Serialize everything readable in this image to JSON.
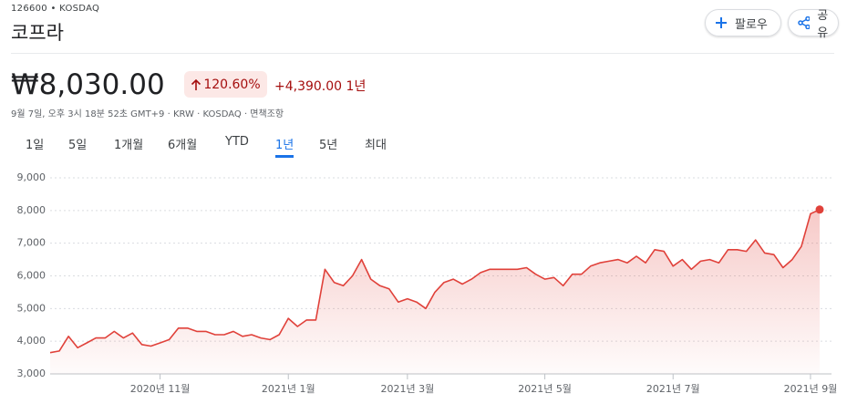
{
  "header": {
    "ticker": "126600 • KOSDAQ",
    "name": "코프라",
    "follow": "팔로우",
    "share": "공유"
  },
  "quote": {
    "price": "₩8,030.00",
    "change_pct": "120.60%",
    "change": "+4,390.00",
    "period": "1년",
    "timestamp": "9월 7일, 오후 3시 18분 52초 GMT+9 · KRW · KOSDAQ · 면책조항"
  },
  "tabs": {
    "items": [
      "1일",
      "5일",
      "1개월",
      "6개월",
      "YTD",
      "1년",
      "5년",
      "최대"
    ],
    "selected": 5
  },
  "chart_data": {
    "type": "line",
    "color": "#e0413a",
    "grid": true,
    "categories": [
      null,
      null,
      null,
      null,
      null,
      null,
      null,
      null,
      null,
      null,
      null,
      null,
      "2020년 11월",
      null,
      null,
      null,
      null,
      null,
      null,
      null,
      null,
      null,
      null,
      null,
      null,
      null,
      "2021년 1월",
      null,
      null,
      null,
      null,
      null,
      null,
      null,
      null,
      null,
      null,
      null,
      null,
      "2021년 3월",
      null,
      null,
      null,
      null,
      null,
      null,
      null,
      null,
      null,
      null,
      null,
      null,
      null,
      null,
      "2021년 5월",
      null,
      null,
      null,
      null,
      null,
      null,
      null,
      null,
      null,
      null,
      null,
      null,
      null,
      "2021년 7월",
      null,
      null,
      null,
      null,
      null,
      null,
      null,
      null,
      null,
      null,
      null,
      null,
      null,
      null,
      "2021년 9월",
      null
    ],
    "values": [
      3650,
      3700,
      4150,
      3800,
      3950,
      4100,
      4100,
      4300,
      4100,
      4250,
      3900,
      3850,
      3950,
      4050,
      4400,
      4400,
      4300,
      4300,
      4200,
      4200,
      4300,
      4150,
      4200,
      4100,
      4050,
      4200,
      4700,
      4450,
      4650,
      4650,
      6200,
      5800,
      5700,
      6000,
      6500,
      5900,
      5700,
      5600,
      5200,
      5300,
      5200,
      5000,
      5500,
      5800,
      5900,
      5750,
      5900,
      6100,
      6200,
      6200,
      6200,
      6200,
      6250,
      6050,
      5900,
      5950,
      5700,
      6050,
      6050,
      6300,
      6400,
      6450,
      6500,
      6400,
      6600,
      6400,
      6800,
      6750,
      6300,
      6500,
      6200,
      6450,
      6500,
      6400,
      6800,
      6800,
      6750,
      7100,
      6700,
      6650,
      6250,
      6500,
      6900,
      7900,
      8030
    ],
    "ylim": [
      3000,
      9000
    ],
    "yticks": [
      {
        "value": 3000,
        "label": "3,000"
      },
      {
        "value": 4000,
        "label": "4,000"
      },
      {
        "value": 5000,
        "label": "5,000"
      },
      {
        "value": 6000,
        "label": "6,000"
      },
      {
        "value": 7000,
        "label": "7,000"
      },
      {
        "value": 8000,
        "label": "8,000"
      },
      {
        "value": 9000,
        "label": "9,000"
      }
    ]
  }
}
